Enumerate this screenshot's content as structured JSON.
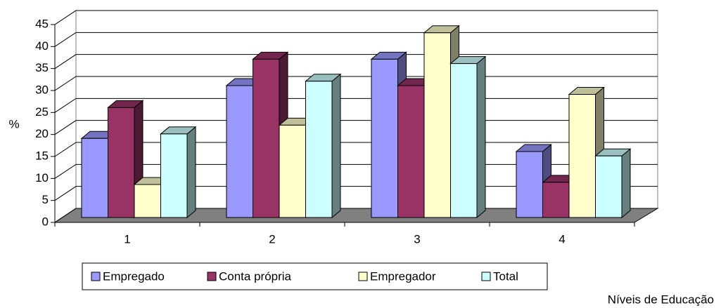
{
  "chart_data": {
    "type": "bar3d",
    "y_label": "%",
    "x_label": "Níveis de Educação",
    "categories": [
      "1",
      "2",
      "3",
      "4"
    ],
    "series": [
      {
        "name": "Empregado",
        "color": "#9999ff",
        "values": [
          18,
          30,
          36,
          15
        ]
      },
      {
        "name": "Conta própria",
        "color": "#993366",
        "values": [
          25,
          36,
          30,
          8
        ]
      },
      {
        "name": "Empregador",
        "color": "#ffffcc",
        "values": [
          7.5,
          21,
          42,
          28
        ]
      },
      {
        "name": "Total",
        "color": "#ccffff",
        "values": [
          19,
          31,
          35,
          14
        ]
      }
    ],
    "ylim": [
      0,
      45
    ],
    "yticks": [
      0,
      5,
      10,
      15,
      20,
      25,
      30,
      35,
      40,
      45
    ],
    "grid": true
  }
}
